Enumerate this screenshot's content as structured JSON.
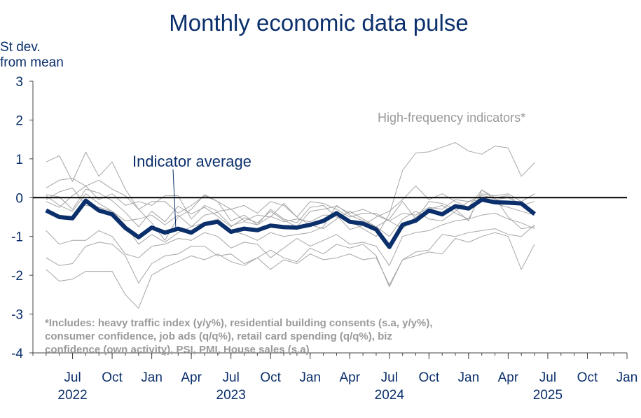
{
  "chart_data": {
    "type": "line",
    "title": "Monthly economic data pulse",
    "ylabel": [
      "St dev.",
      "from mean"
    ],
    "ylim": [
      -4,
      3
    ],
    "yticks": [
      3,
      2,
      1,
      0,
      -1,
      -2,
      -3,
      -4
    ],
    "x_start": "2022-04",
    "x_end": "2026-01",
    "xticks": [
      {
        "date": "2022-07",
        "label": "Jul"
      },
      {
        "date": "2022-10",
        "label": "Oct"
      },
      {
        "date": "2023-01",
        "label": "Jan"
      },
      {
        "date": "2023-04",
        "label": "Apr"
      },
      {
        "date": "2023-07",
        "label": "Jul"
      },
      {
        "date": "2023-10",
        "label": "Oct"
      },
      {
        "date": "2024-01",
        "label": "Jan"
      },
      {
        "date": "2024-04",
        "label": "Apr"
      },
      {
        "date": "2024-07",
        "label": "Jul"
      },
      {
        "date": "2024-10",
        "label": "Oct"
      },
      {
        "date": "2025-01",
        "label": "Jan"
      },
      {
        "date": "2025-04",
        "label": "Apr"
      },
      {
        "date": "2025-07",
        "label": "Jul"
      },
      {
        "date": "2025-10",
        "label": "Oct"
      },
      {
        "date": "2026-01",
        "label": "Jan"
      }
    ],
    "year_labels": [
      {
        "date": "2022-07",
        "label": "2022"
      },
      {
        "date": "2023-07",
        "label": "2023"
      },
      {
        "date": "2024-07",
        "label": "2024"
      },
      {
        "date": "2025-07",
        "label": "2025"
      }
    ],
    "annotations": {
      "average_label": "Indicator average",
      "high_frequency_label": "High-frequency indicators*",
      "footnote": [
        "*Includes: heavy traffic index (y/y%), residential building consents (s.a, y/y%),",
        "consumer confidence, job ads (q/q%), retail card spending (q/q%), biz",
        "confidence (own activity), PSI, PMI, House sales (s.a)"
      ]
    },
    "colors": {
      "average": "#0a2f6b",
      "indicators": "#a6a6a6",
      "zero_line": "#000000",
      "text": "#0a2f6b",
      "note": "#9a9a9a"
    },
    "average_series": {
      "name": "Indicator average",
      "start": "2022-05",
      "values": [
        -0.33,
        -0.5,
        -0.53,
        -0.08,
        -0.33,
        -0.43,
        -0.78,
        -1.02,
        -0.77,
        -0.9,
        -0.8,
        -0.9,
        -0.68,
        -0.62,
        -0.88,
        -0.8,
        -0.84,
        -0.72,
        -0.76,
        -0.77,
        -0.7,
        -0.6,
        -0.4,
        -0.62,
        -0.67,
        -0.82,
        -1.27,
        -0.7,
        -0.59,
        -0.33,
        -0.43,
        -0.22,
        -0.28,
        -0.05,
        -0.12,
        -0.13,
        -0.15,
        -0.42
      ]
    },
    "indicator_series": [
      {
        "start": "2022-05",
        "values": [
          0.92,
          1.08,
          0.42,
          1.17,
          0.55,
          0.92,
          0.22,
          -0.3,
          -0.65,
          -1.1,
          -0.5,
          -0.3,
          0.08,
          -0.1,
          -0.6,
          -0.45,
          -0.7,
          -0.3,
          -0.55,
          -0.65,
          -0.25,
          -0.2,
          -0.5,
          -0.6,
          -0.8,
          -1.0,
          -0.42,
          0.7,
          1.15,
          1.18,
          1.3,
          1.42,
          1.2,
          1.12,
          1.33,
          1.28,
          0.55,
          0.9
        ]
      },
      {
        "start": "2022-05",
        "values": [
          0.25,
          0.45,
          0.5,
          0.3,
          0.45,
          0.22,
          0.05,
          -0.3,
          -0.1,
          -0.1,
          -0.4,
          -0.2,
          0.05,
          -0.1,
          -0.3,
          -0.2,
          -0.4,
          -0.1,
          -0.2,
          -0.5,
          -0.1,
          -0.15,
          -0.3,
          -0.5,
          -0.4,
          -0.4,
          -0.6,
          -0.8,
          -0.5,
          -0.3,
          -0.2,
          -0.4,
          -0.55,
          0.1,
          0.05,
          0.1,
          -0.1,
          0.1
        ]
      },
      {
        "start": "2022-05",
        "values": [
          0.08,
          0.02,
          -0.3,
          0.22,
          0.12,
          -0.08,
          -0.38,
          -0.75,
          -0.35,
          -0.62,
          -0.22,
          -0.42,
          -0.25,
          -0.48,
          -0.75,
          -0.52,
          -0.65,
          -0.35,
          -0.58,
          -0.75,
          -0.35,
          -0.3,
          -0.22,
          -0.4,
          -0.3,
          -0.45,
          -0.6,
          -0.4,
          -0.45,
          -0.25,
          -0.3,
          -0.05,
          -0.1,
          0.05,
          0.0,
          0.05,
          -0.2,
          -0.1
        ]
      },
      {
        "start": "2022-05",
        "values": [
          0.05,
          -0.2,
          -0.35,
          0.1,
          -0.15,
          -0.35,
          -0.6,
          -0.55,
          -0.45,
          -0.7,
          -0.45,
          -0.75,
          -0.45,
          -0.38,
          -0.72,
          -0.62,
          -0.7,
          -0.48,
          -0.62,
          -0.55,
          -0.62,
          -0.45,
          -0.45,
          -0.82,
          -0.72,
          -0.5,
          -0.35,
          -0.05,
          0.3,
          -0.05,
          0.1,
          -0.1,
          -0.25,
          0.2,
          0.0,
          -0.5,
          -0.8,
          -0.75
        ]
      },
      {
        "start": "2022-05",
        "values": [
          -0.1,
          -0.25,
          0.05,
          0.3,
          -0.05,
          0.1,
          -0.2,
          -0.1,
          -0.2,
          0.05,
          0.05,
          -0.55,
          -0.2,
          -0.35,
          -0.3,
          -0.6,
          -0.45,
          -0.5,
          -0.15,
          -0.5,
          -0.7,
          -0.8,
          -0.55,
          -0.35,
          -0.55,
          -0.75,
          -0.55,
          -0.1,
          -0.55,
          -0.1,
          -0.15,
          -0.3,
          -0.6,
          0.2,
          -0.05,
          0.0,
          -0.2,
          -0.35
        ]
      },
      {
        "start": "2022-05",
        "values": [
          -0.85,
          -1.2,
          -1.1,
          -1.1,
          -0.85,
          -1.0,
          -1.45,
          -1.55,
          -1.25,
          -1.2,
          -1.05,
          -1.1,
          -0.9,
          -1.0,
          -1.3,
          -1.15,
          -1.2,
          -1.55,
          -1.3,
          -1.05,
          -1.25,
          -1.1,
          -0.95,
          -1.2,
          -1.15,
          -1.25,
          -1.75,
          -1.0,
          -0.9,
          -0.85,
          -0.7,
          -0.6,
          -0.55,
          -0.45,
          -0.4,
          -0.55,
          -0.65,
          -0.8
        ]
      },
      {
        "start": "2022-05",
        "values": [
          -1.55,
          -1.75,
          -1.7,
          -1.25,
          -1.15,
          -1.2,
          -1.5,
          -2.2,
          -1.7,
          -1.5,
          -1.45,
          -1.25,
          -1.25,
          -1.5,
          -1.45,
          -1.7,
          -1.55,
          -1.35,
          -1.55,
          -1.65,
          -1.3,
          -1.45,
          -1.2,
          -1.3,
          -1.2,
          -1.5,
          -2.3,
          -1.6,
          -1.4,
          -1.35,
          -0.95,
          -1.0,
          -0.9,
          -0.85,
          -0.8,
          -0.95,
          -1.0,
          -0.7
        ]
      },
      {
        "start": "2022-05",
        "values": [
          -1.85,
          -2.15,
          -2.1,
          -1.9,
          -1.9,
          -1.9,
          -2.5,
          -2.85,
          -2.0,
          -1.8,
          -1.65,
          -1.5,
          -1.6,
          -1.45,
          -1.65,
          -1.75,
          -1.55,
          -1.85,
          -1.6,
          -1.7,
          -1.45,
          -1.6,
          -1.55,
          -1.45,
          -1.6,
          -1.55,
          -2.25,
          -1.6,
          -1.5,
          -1.4,
          -1.45,
          -1.05,
          -1.15,
          -1.0,
          -0.9,
          -1.0,
          -1.85,
          -1.2
        ]
      },
      {
        "start": "2022-05",
        "values": [
          -0.05,
          0.15,
          0.25,
          -0.2,
          -0.25,
          -0.35,
          -0.7,
          -1.2,
          -0.95,
          -1.15,
          -0.9,
          -0.75,
          -0.65,
          -0.55,
          -0.85,
          -0.95,
          -1.1,
          -0.9,
          -1.0,
          -0.95,
          -0.9,
          -0.75,
          -0.2,
          -0.45,
          -0.6,
          -0.75,
          -1.0,
          -0.55,
          -0.35,
          -0.55,
          -0.6,
          -0.35,
          -0.1,
          -0.05,
          -0.15,
          -0.25,
          -0.35,
          -0.45
        ]
      }
    ]
  }
}
